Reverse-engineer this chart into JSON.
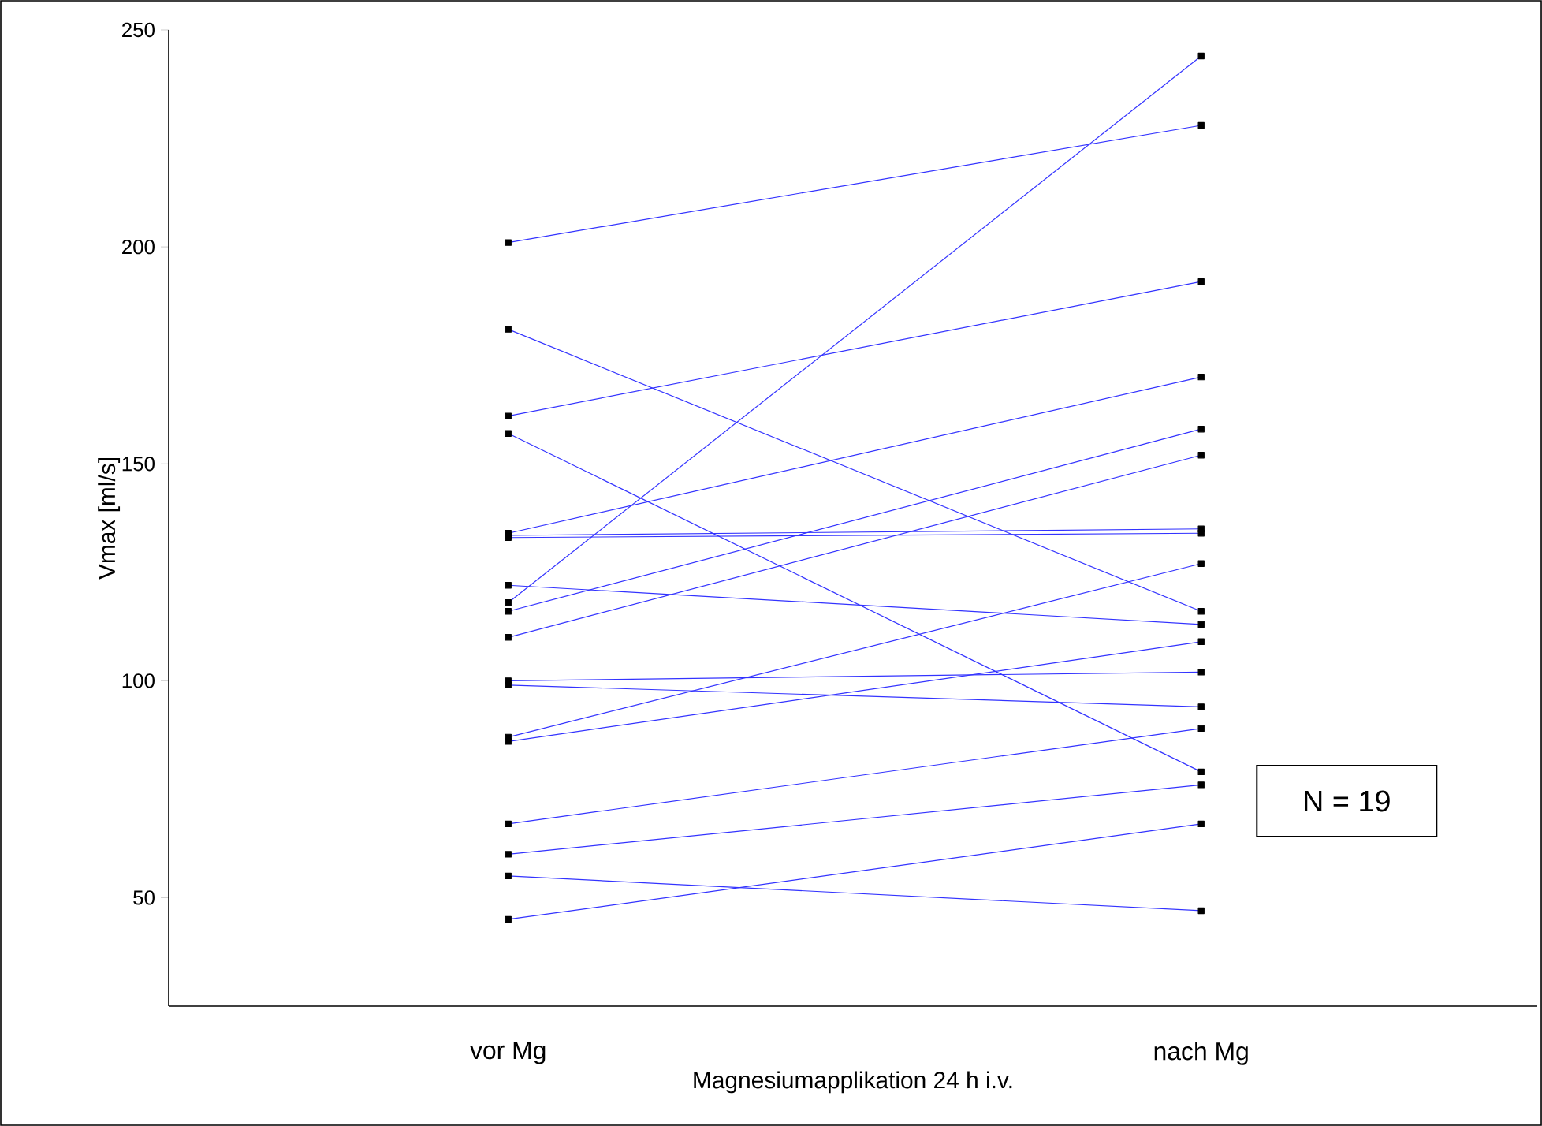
{
  "chart_data": {
    "type": "line",
    "xlabel": "Magnesiumapplikation 24 h i.v.",
    "ylabel": "Vmax [ml/s]",
    "categories": [
      "vor Mg",
      "nach Mg"
    ],
    "ylim": [
      25,
      250
    ],
    "yticks": [
      50,
      100,
      150,
      200,
      250
    ],
    "marker": "square",
    "annotations": [
      "N = 19"
    ],
    "series": [
      {
        "color": "#3333ff",
        "values": [
          201,
          228
        ]
      },
      {
        "color": "#3333ff",
        "values": [
          118,
          244
        ]
      },
      {
        "color": "#3333ff",
        "values": [
          181,
          116
        ]
      },
      {
        "color": "#3333ff",
        "values": [
          161,
          192
        ]
      },
      {
        "color": "#3333ff",
        "values": [
          157,
          79
        ]
      },
      {
        "color": "#3333ff",
        "values": [
          134,
          170
        ]
      },
      {
        "color": "#3333ff",
        "values": [
          133.5,
          135
        ]
      },
      {
        "color": "#3333ff",
        "values": [
          133,
          134
        ]
      },
      {
        "color": "#3333ff",
        "values": [
          122,
          113
        ]
      },
      {
        "color": "#3333ff",
        "values": [
          116,
          158
        ]
      },
      {
        "color": "#3333ff",
        "values": [
          110,
          152
        ]
      },
      {
        "color": "#3333ff",
        "values": [
          100,
          102
        ]
      },
      {
        "color": "#3333ff",
        "values": [
          99,
          94
        ]
      },
      {
        "color": "#3333ff",
        "values": [
          87,
          127
        ]
      },
      {
        "color": "#3333ff",
        "values": [
          86,
          109
        ]
      },
      {
        "color": "#3333ff",
        "values": [
          67,
          89
        ]
      },
      {
        "color": "#3333ff",
        "values": [
          60,
          76
        ]
      },
      {
        "color": "#3333ff",
        "values": [
          55,
          47
        ]
      },
      {
        "color": "#3333ff",
        "values": [
          45,
          67
        ]
      }
    ]
  }
}
